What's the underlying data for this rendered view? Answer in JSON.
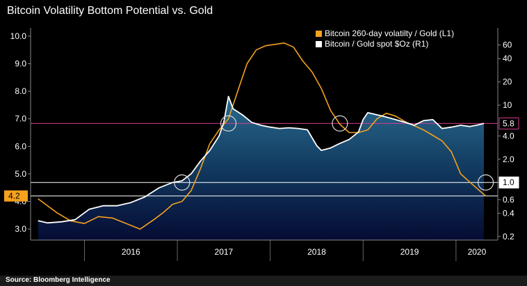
{
  "source": "Source: Bloomberg Intelligence",
  "chart_data": {
    "type": "line",
    "title": "Bitcoin Volatility Bottom Potential vs. Gold",
    "x_ticks": [
      "2016",
      "2017",
      "2018",
      "2019",
      "2020"
    ],
    "left_axis": {
      "scale": "linear",
      "range": [
        2.6,
        10.3
      ],
      "ticks": [
        "3.0",
        "4.0",
        "5.0",
        "6.0",
        "7.0",
        "8.0",
        "9.0",
        "10.0"
      ]
    },
    "right_axis": {
      "scale": "log",
      "range": [
        0.18,
        100
      ],
      "ticks": [
        "0.2",
        "0.4",
        "0.6",
        "1.0",
        "2.0",
        "4.0",
        "10",
        "20",
        "40",
        "60"
      ]
    },
    "series": [
      {
        "name": "Bitcoin 260-day volatilty / Gold  (L1)",
        "axis": "left",
        "color": "#f5a11d",
        "x": [
          2015.5,
          2015.7,
          2015.85,
          2016.0,
          2016.15,
          2016.3,
          2016.45,
          2016.6,
          2016.75,
          2016.85,
          2016.95,
          2017.05,
          2017.15,
          2017.25,
          2017.35,
          2017.45,
          2017.55,
          2017.65,
          2017.75,
          2017.85,
          2017.95,
          2018.05,
          2018.15,
          2018.25,
          2018.35,
          2018.45,
          2018.55,
          2018.65,
          2018.75,
          2018.85,
          2018.95,
          2019.05,
          2019.15,
          2019.25,
          2019.35,
          2019.45,
          2019.55,
          2019.65,
          2019.75,
          2019.85,
          2019.95,
          2020.05,
          2020.15,
          2020.25,
          2020.32
        ],
        "values": [
          4.1,
          3.6,
          3.3,
          3.2,
          3.45,
          3.4,
          3.2,
          3.0,
          3.35,
          3.6,
          3.9,
          4.0,
          4.4,
          5.2,
          6.1,
          6.6,
          7.0,
          8.0,
          9.0,
          9.5,
          9.65,
          9.7,
          9.75,
          9.6,
          9.1,
          8.7,
          8.1,
          7.3,
          6.8,
          6.5,
          6.5,
          6.6,
          7.0,
          7.2,
          7.1,
          6.9,
          6.75,
          6.6,
          6.4,
          6.2,
          5.8,
          5.0,
          4.7,
          4.4,
          4.2
        ]
      },
      {
        "name": "Bitcoin / Gold spot $Oz (R1)",
        "axis": "right",
        "color": "#ffffff",
        "x": [
          2015.5,
          2015.6,
          2015.75,
          2015.9,
          2016.05,
          2016.2,
          2016.35,
          2016.5,
          2016.65,
          2016.8,
          2016.95,
          2017.05,
          2017.15,
          2017.25,
          2017.35,
          2017.45,
          2017.5,
          2017.55,
          2017.6,
          2017.7,
          2017.8,
          2017.9,
          2018.0,
          2018.1,
          2018.2,
          2018.3,
          2018.4,
          2018.5,
          2018.55,
          2018.65,
          2018.75,
          2018.85,
          2018.95,
          2019.0,
          2019.05,
          2019.15,
          2019.25,
          2019.35,
          2019.45,
          2019.55,
          2019.65,
          2019.75,
          2019.85,
          2019.95,
          2020.05,
          2020.15,
          2020.25,
          2020.3
        ],
        "values": [
          0.32,
          0.3,
          0.31,
          0.33,
          0.45,
          0.5,
          0.5,
          0.55,
          0.65,
          0.85,
          1.0,
          1.05,
          1.3,
          1.9,
          2.6,
          4.0,
          6.0,
          13.0,
          9.0,
          7.5,
          6.0,
          5.5,
          5.2,
          5.0,
          5.1,
          5.0,
          4.8,
          3.0,
          2.6,
          2.8,
          3.2,
          3.6,
          4.5,
          6.5,
          8.0,
          7.5,
          7.0,
          6.5,
          6.0,
          5.5,
          6.3,
          6.5,
          5.0,
          5.2,
          5.5,
          5.3,
          5.6,
          5.8
        ]
      }
    ],
    "reference_lines": [
      {
        "label": "5.8",
        "axis": "right",
        "value": 5.8,
        "color": "#d63a8e"
      },
      {
        "label": "1.0",
        "axis": "right",
        "value": 1.0,
        "color": "#ffffff"
      },
      {
        "label": "4.2",
        "axis": "left",
        "value": 4.2,
        "color": "#ffffff"
      }
    ],
    "markers": [
      {
        "x": 2017.05,
        "value": 1.0,
        "axis": "right"
      },
      {
        "x": 2017.55,
        "value": 5.8,
        "axis": "right"
      },
      {
        "x": 2018.75,
        "value": 5.8,
        "axis": "right"
      },
      {
        "x": 2020.32,
        "value": 1.0,
        "axis": "right"
      }
    ]
  }
}
